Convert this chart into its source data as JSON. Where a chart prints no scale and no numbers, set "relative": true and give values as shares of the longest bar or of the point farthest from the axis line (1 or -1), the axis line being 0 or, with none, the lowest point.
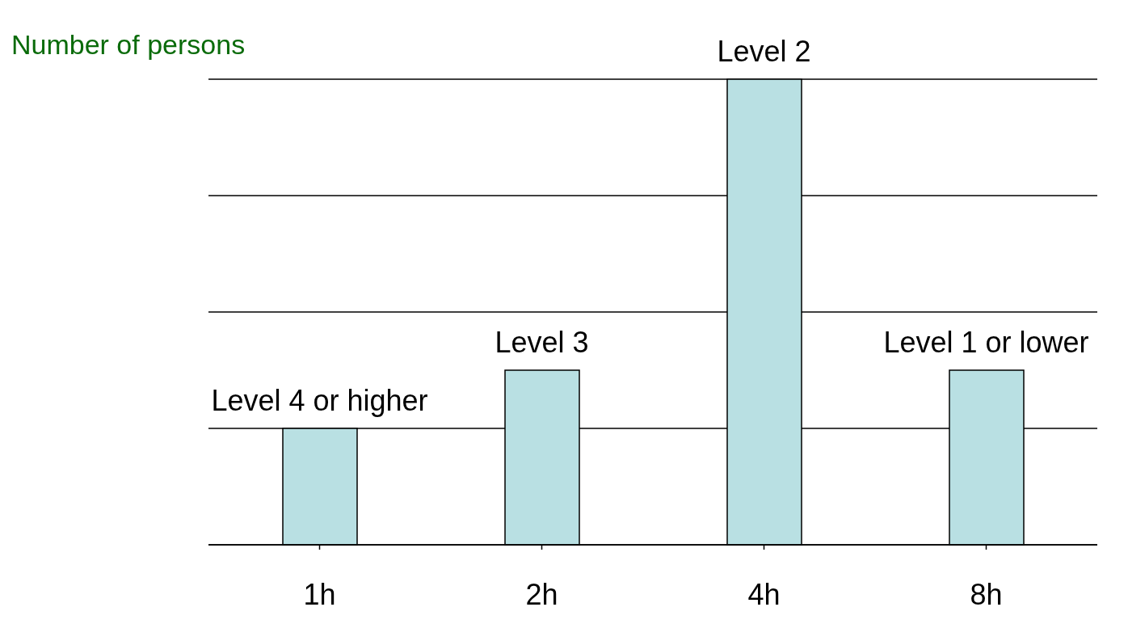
{
  "chart_data": {
    "type": "bar",
    "relative": true,
    "ylabel": "Number of persons",
    "categories": [
      "1h",
      "2h",
      "4h",
      "8h"
    ],
    "values": [
      0.25,
      0.375,
      1,
      0.375
    ],
    "color": "#b9e0e3",
    "grid": "y",
    "annotations": [
      {
        "text": "Level 4 or higher",
        "x": "1h",
        "y": 0.25
      },
      {
        "text": "Level 3",
        "x": "2h",
        "y": 0.375
      },
      {
        "text": "Level 2",
        "x": "4h",
        "y": 1
      },
      {
        "text": "Level 1 or lower",
        "x": "8h",
        "y": 0.375
      }
    ]
  }
}
